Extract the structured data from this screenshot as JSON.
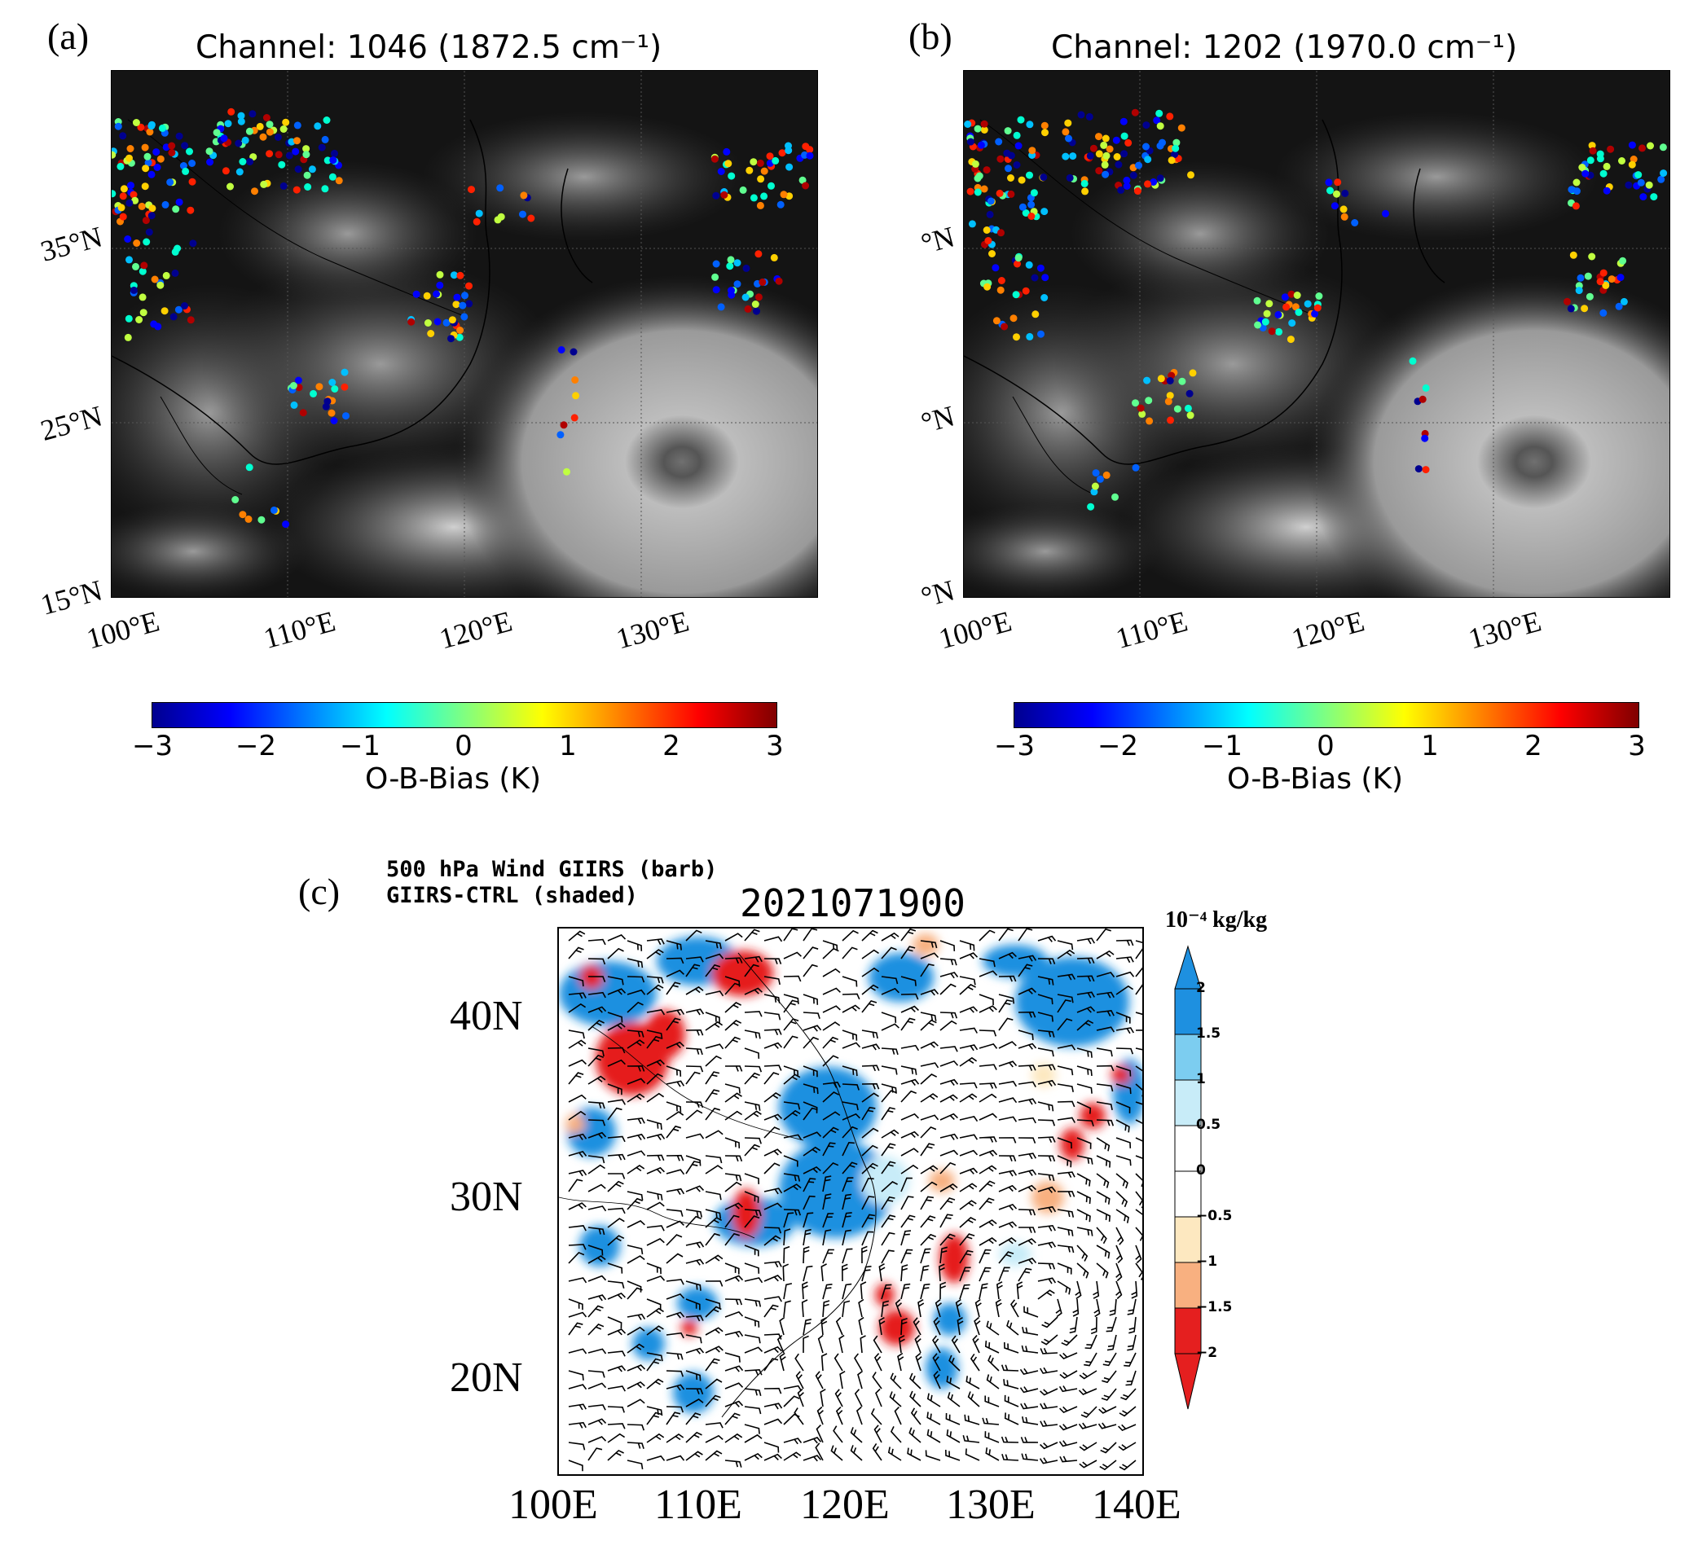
{
  "panel_a": {
    "label": "(a)",
    "title": "Channel: 1046  (1872.5 cm⁻¹)",
    "lat_ticks": [
      "35°N",
      "25°N",
      "15°N"
    ],
    "lon_ticks": [
      "100°E",
      "110°E",
      "120°E",
      "130°E"
    ],
    "colorbar": {
      "ticks": [
        "−3",
        "−2",
        "−1",
        "0",
        "1",
        "2",
        "3"
      ],
      "label": "O-B-Bias (K)",
      "range": [
        -3,
        3
      ],
      "colormap": "jet"
    }
  },
  "panel_b": {
    "label": "(b)",
    "title": "Channel: 1202  (1970.0 cm⁻¹)",
    "lat_ticks": [
      "°N",
      "°N",
      "°N"
    ],
    "lon_ticks": [
      "100°E",
      "110°E",
      "120°E",
      "130°E"
    ],
    "colorbar": {
      "ticks": [
        "−3",
        "−2",
        "−1",
        "0",
        "1",
        "2",
        "3"
      ],
      "label": "O-B-Bias (K)",
      "range": [
        -3,
        3
      ],
      "colormap": "jet"
    }
  },
  "panel_c": {
    "label": "(c)",
    "title_line1": "500 hPa Wind GIIRS (barb)",
    "title_line2": "GIIRS-CTRL (shaded)",
    "datetime": "2021071900",
    "lat_ticks": [
      "40N",
      "30N",
      "20N"
    ],
    "lon_ticks": [
      "100E",
      "110E",
      "120E",
      "130E",
      "140E"
    ],
    "colorbar": {
      "unit": "10⁻⁴ kg/kg",
      "ticks": [
        "2",
        "1.5",
        "1",
        "0.5",
        "0",
        "−0.5",
        "−1",
        "−1.5",
        "−2"
      ],
      "colors": [
        "#1e90e0",
        "#7ccdf0",
        "#c8ecf8",
        "#ffffff",
        "#ffffff",
        "#fde8c0",
        "#f8b080",
        "#f04848"
      ]
    }
  },
  "colors": {
    "background": "#ffffff",
    "satellite_bg": "#121212",
    "positive_red": "#e51f1f",
    "negative_blue": "#1e90e0"
  }
}
